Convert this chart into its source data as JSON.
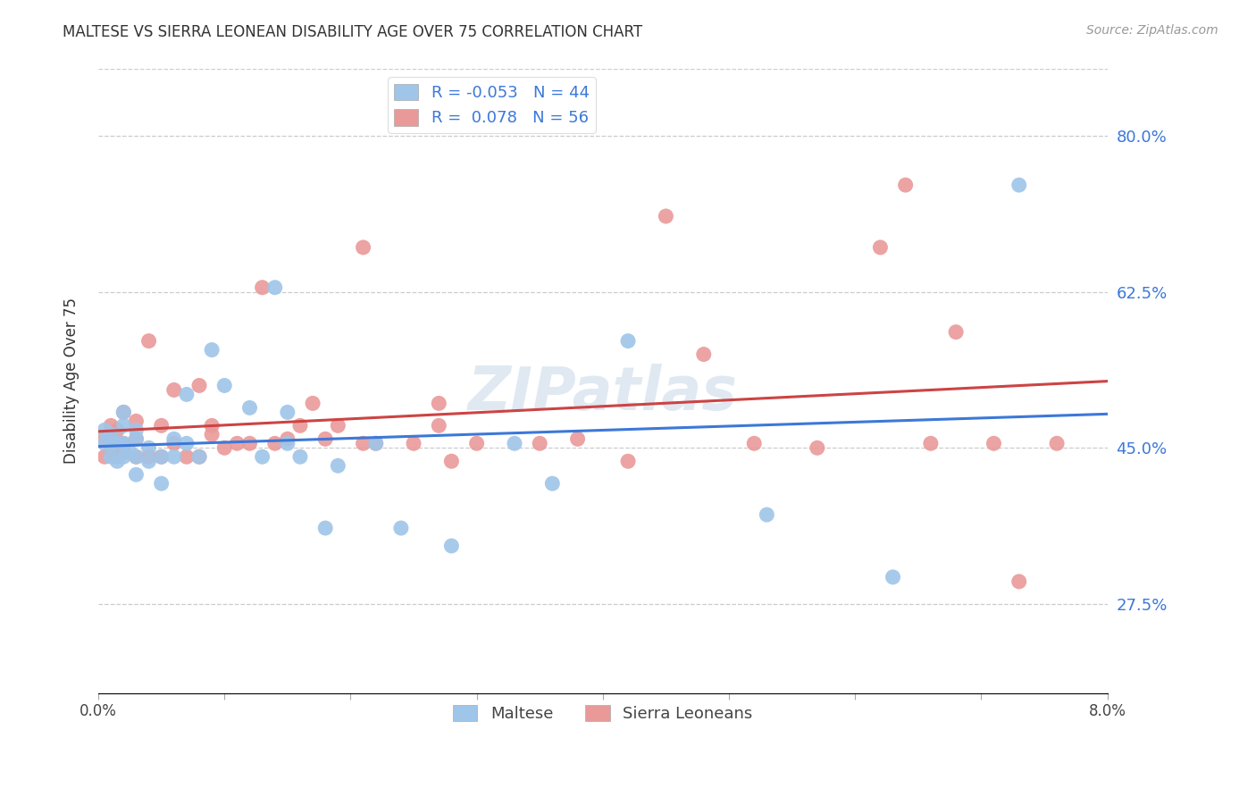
{
  "title": "MALTESE VS SIERRA LEONEAN DISABILITY AGE OVER 75 CORRELATION CHART",
  "source": "Source: ZipAtlas.com",
  "ylabel": "Disability Age Over 75",
  "ytick_labels": [
    "80.0%",
    "62.5%",
    "45.0%",
    "27.5%"
  ],
  "ytick_values": [
    0.8,
    0.625,
    0.45,
    0.275
  ],
  "legend_label1": "Maltese",
  "legend_label2": "Sierra Leoneans",
  "r1": "-0.053",
  "n1": "44",
  "r2": "0.078",
  "n2": "56",
  "color_blue": "#9fc5e8",
  "color_pink": "#ea9999",
  "line_color_blue": "#3c78d8",
  "line_color_pink": "#cc4444",
  "watermark": "ZIPatlas",
  "xlim": [
    0.0,
    0.08
  ],
  "ylim": [
    0.175,
    0.875
  ],
  "blue_x": [
    0.0005,
    0.0005,
    0.001,
    0.001,
    0.001,
    0.0015,
    0.0015,
    0.002,
    0.002,
    0.002,
    0.002,
    0.0025,
    0.003,
    0.003,
    0.003,
    0.003,
    0.004,
    0.004,
    0.005,
    0.005,
    0.006,
    0.006,
    0.007,
    0.007,
    0.008,
    0.009,
    0.01,
    0.012,
    0.013,
    0.014,
    0.015,
    0.015,
    0.016,
    0.018,
    0.019,
    0.022,
    0.024,
    0.028,
    0.033,
    0.036,
    0.042,
    0.053,
    0.063,
    0.073
  ],
  "blue_y": [
    0.455,
    0.47,
    0.44,
    0.455,
    0.465,
    0.435,
    0.455,
    0.44,
    0.455,
    0.475,
    0.49,
    0.445,
    0.42,
    0.44,
    0.46,
    0.47,
    0.435,
    0.45,
    0.41,
    0.44,
    0.44,
    0.46,
    0.455,
    0.51,
    0.44,
    0.56,
    0.52,
    0.495,
    0.44,
    0.63,
    0.49,
    0.455,
    0.44,
    0.36,
    0.43,
    0.455,
    0.36,
    0.34,
    0.455,
    0.41,
    0.57,
    0.375,
    0.305,
    0.745
  ],
  "pink_x": [
    0.0005,
    0.0005,
    0.001,
    0.001,
    0.001,
    0.0015,
    0.0015,
    0.002,
    0.002,
    0.002,
    0.003,
    0.003,
    0.003,
    0.004,
    0.004,
    0.005,
    0.005,
    0.006,
    0.006,
    0.007,
    0.008,
    0.008,
    0.009,
    0.009,
    0.01,
    0.011,
    0.012,
    0.013,
    0.014,
    0.015,
    0.016,
    0.017,
    0.018,
    0.019,
    0.021,
    0.021,
    0.022,
    0.025,
    0.027,
    0.027,
    0.028,
    0.03,
    0.035,
    0.038,
    0.042,
    0.045,
    0.048,
    0.052,
    0.057,
    0.062,
    0.064,
    0.066,
    0.068,
    0.071,
    0.073,
    0.076
  ],
  "pink_y": [
    0.44,
    0.46,
    0.45,
    0.46,
    0.475,
    0.44,
    0.47,
    0.445,
    0.455,
    0.49,
    0.44,
    0.46,
    0.48,
    0.44,
    0.57,
    0.44,
    0.475,
    0.455,
    0.515,
    0.44,
    0.44,
    0.52,
    0.465,
    0.475,
    0.45,
    0.455,
    0.455,
    0.63,
    0.455,
    0.46,
    0.475,
    0.5,
    0.46,
    0.475,
    0.455,
    0.675,
    0.455,
    0.455,
    0.475,
    0.5,
    0.435,
    0.455,
    0.455,
    0.46,
    0.435,
    0.71,
    0.555,
    0.455,
    0.45,
    0.675,
    0.745,
    0.455,
    0.58,
    0.455,
    0.3,
    0.455
  ]
}
